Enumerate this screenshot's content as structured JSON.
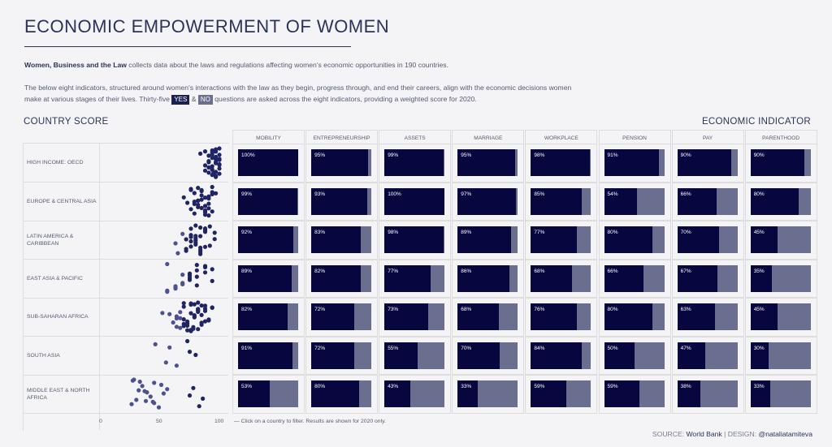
{
  "header": {
    "title": "ECONOMIC EMPOWERMENT OF WOMEN",
    "intro_bold": "Women, Business and the Law",
    "intro_rest": " collects data about the laws and regulations affecting women's economic opportunities in 190 countries.",
    "desc_line1": "The below eight indicators, structured around women's interactions with the law as they begin, progress through, and end their careers, align with the economic decisions women",
    "desc_line2_a": "make at various stages of their lives. Thirty-five",
    "yes_tag": "YES",
    "amp": "&",
    "no_tag": "NO",
    "desc_line2_b": "questions are asked across the eight indicators, providing a weighted score for 2020."
  },
  "sections": {
    "left": "COUNTRY SCORE",
    "right": "ECONOMIC INDICATOR"
  },
  "footer": {
    "note": "— Click on a country to filter. Results are shown for 2020 only.",
    "source_prefix": "SOURCE: ",
    "source_name": "World Bank",
    "separator": " | DESIGN: ",
    "designer": "@nataliatamiteva"
  },
  "colors": {
    "bar_filled": "#08063f",
    "bar_rest": "#6b6f8f",
    "dot": "#1f2563"
  },
  "chart_data": [
    {
      "type": "scatter",
      "title": "COUNTRY SCORE",
      "xlim": [
        0,
        100
      ],
      "x_ticks": [
        "0",
        "50",
        "100"
      ],
      "categories": [
        "HIGH INCOME: OECD",
        "EUROPE & CENTRAL ASIA",
        "LATIN AMERICA & CARIBBEAN",
        "EAST ASIA & PACIFIC",
        "SUB-SAHARAN AFRICA",
        "SOUTH ASIA",
        "MIDDLE EAST & NORTH AFRICA"
      ],
      "region_labels": [
        [
          "HIGH INCOME: OECD"
        ],
        [
          "EUROPE & CENTRAL ASIA"
        ],
        [
          "LATIN AMERICA &",
          "CARIBBEAN"
        ],
        [
          "EAST ASIA & PACIFIC"
        ],
        [
          "SUB-SAHARAN AFRICA"
        ],
        [
          "SOUTH ASIA"
        ],
        [
          "MIDDLE EAST & NORTH",
          "AFRICA"
        ]
      ],
      "series": [
        {
          "values": [
            100,
            97,
            94,
            97,
            91,
            95,
            100,
            88,
            97,
            94,
            100,
            94,
            91,
            97,
            84,
            100,
            94,
            97,
            91,
            97,
            100,
            88,
            94,
            97,
            100,
            91,
            94,
            97,
            100,
            94,
            88,
            97,
            91,
            94,
            100,
            97
          ]
        },
        {
          "values": [
            94,
            88,
            91,
            85,
            82,
            94,
            97,
            79,
            88,
            91,
            82,
            76,
            85,
            88,
            94,
            73,
            79,
            85,
            88,
            82,
            91,
            76,
            85,
            79,
            88,
            94,
            82,
            91,
            70,
            85,
            76,
            82,
            88,
            79,
            91
          ]
        },
        {
          "values": [
            80,
            84,
            88,
            76,
            72,
            84,
            88,
            80,
            65,
            76,
            92,
            84,
            80,
            72,
            88,
            76,
            84,
            69,
            80,
            92,
            76,
            84,
            88,
            80,
            72,
            96,
            63,
            84,
            80,
            76,
            88,
            96
          ]
        },
        {
          "values": [
            56,
            69,
            81,
            88,
            75,
            63,
            81,
            94,
            56,
            75,
            69,
            88,
            81,
            63,
            94,
            75,
            56,
            88,
            69,
            81,
            75,
            63
          ]
        },
        {
          "values": [
            82,
            76,
            70,
            88,
            64,
            78,
            82,
            91,
            73,
            67,
            85,
            76,
            79,
            70,
            94,
            64,
            82,
            88,
            73,
            76,
            58,
            85,
            70,
            79,
            67,
            82,
            91,
            76,
            52,
            73,
            85,
            79,
            64,
            88,
            70,
            76,
            82,
            61,
            79,
            85,
            73,
            94,
            67,
            78,
            82,
            88,
            70
          ]
        },
        {
          "values": [
            73,
            75,
            55,
            46,
            80,
            64,
            58
          ]
        },
        {
          "values": [
            28,
            32,
            38,
            45,
            53,
            26,
            35,
            42,
            49,
            56,
            30,
            33,
            39,
            45,
            51,
            75,
            83,
            78,
            86,
            27,
            37,
            44
          ]
        }
      ]
    },
    {
      "type": "bar",
      "title": "ECONOMIC INDICATOR",
      "categories": [
        "MOBILITY",
        "ENTREPRENEURSHIP",
        "ASSETS",
        "MARRIAGE",
        "WORKPLACE",
        "PENSION",
        "PAY",
        "PARENTHOOD"
      ],
      "rows": [
        "HIGH INCOME: OECD",
        "EUROPE & CENTRAL ASIA",
        "LATIN AMERICA & CARIBBEAN",
        "EAST ASIA & PACIFIC",
        "SUB-SAHARAN AFRICA",
        "SOUTH ASIA",
        "MIDDLE EAST & NORTH AFRICA"
      ],
      "values": [
        [
          100,
          95,
          99,
          95,
          98,
          91,
          90,
          90
        ],
        [
          99,
          93,
          100,
          97,
          85,
          54,
          66,
          80
        ],
        [
          92,
          83,
          98,
          89,
          77,
          80,
          70,
          45
        ],
        [
          89,
          82,
          77,
          86,
          68,
          66,
          67,
          35
        ],
        [
          82,
          72,
          73,
          68,
          76,
          80,
          63,
          45
        ],
        [
          91,
          72,
          55,
          70,
          84,
          50,
          47,
          30
        ],
        [
          53,
          80,
          43,
          33,
          59,
          59,
          38,
          33
        ]
      ],
      "value_suffix": "%",
      "ylim": [
        0,
        100
      ]
    }
  ]
}
